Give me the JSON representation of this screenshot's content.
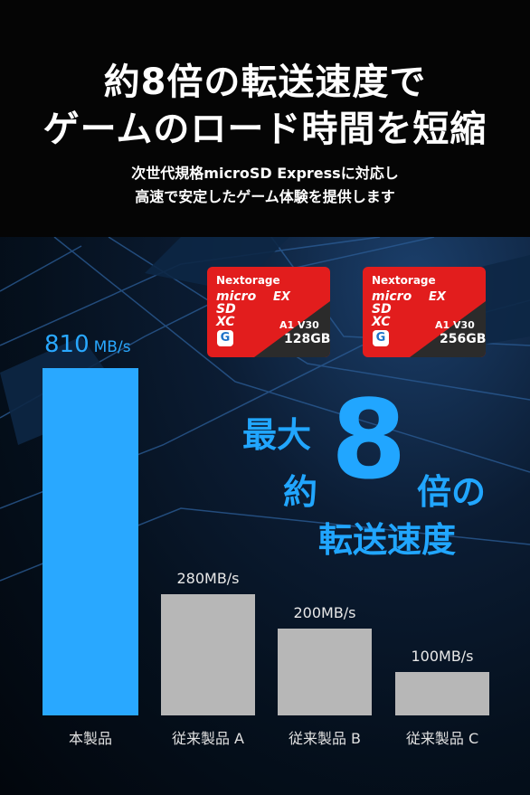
{
  "headline": {
    "line1": "約8倍の転送速度で",
    "line2": "ゲームのロード時間を短縮"
  },
  "subheadline": {
    "line1": "次世代規格microSD Expressに対応し",
    "line2": "高速で安定したゲーム体験を提供します"
  },
  "cards": [
    {
      "brand": "Nextorage",
      "logo_top": "micro",
      "logo_mid": "SD",
      "logo_bot": "XC",
      "ex": "EX",
      "class_text": "A1 V30",
      "capacity": "128GB",
      "icon": "g-logo-icon"
    },
    {
      "brand": "Nextorage",
      "logo_top": "micro",
      "logo_mid": "SD",
      "logo_bot": "XC",
      "ex": "EX",
      "class_text": "A1 V30",
      "capacity": "256GB",
      "icon": "g-logo-icon"
    }
  ],
  "highlight": {
    "line1": "最大",
    "line2a": "約",
    "number": "8",
    "line2b": "倍の",
    "line3": "転送速度"
  },
  "colors": {
    "accent": "#29a8ff",
    "gray_bar": "#b7b7b7",
    "card_red": "#e21d1d"
  },
  "chart_data": {
    "type": "bar",
    "categories": [
      "本製品",
      "従来製品 A",
      "従来製品 B",
      "従来製品 C"
    ],
    "values": [
      810,
      280,
      200,
      100
    ],
    "value_labels": [
      "810",
      "280MB/s",
      "200MB/s",
      "100MB/s"
    ],
    "main_unit": "MB/s",
    "title": "",
    "xlabel": "",
    "ylabel": "",
    "grid": false
  }
}
